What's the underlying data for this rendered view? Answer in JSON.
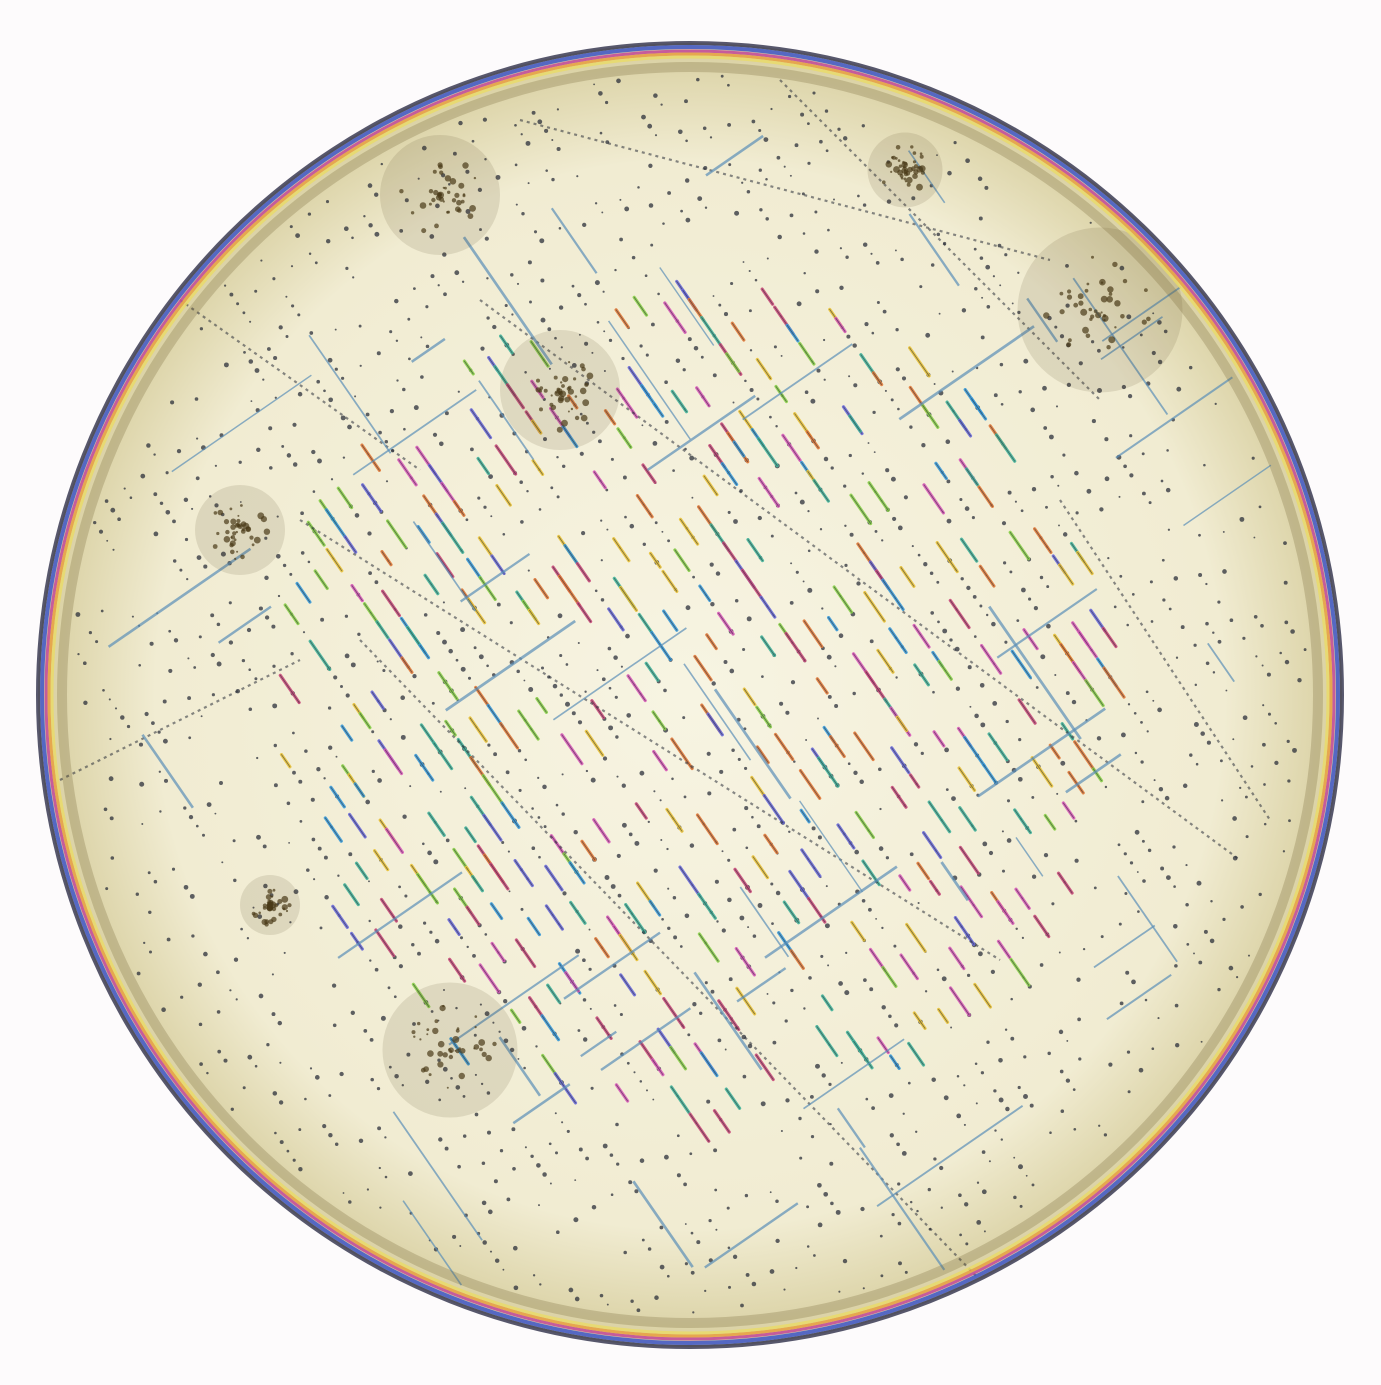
{
  "image": {
    "subject": "micrograph-droplet",
    "colors": {
      "background": "#fdfbfc",
      "interior": "#f1ecd2",
      "interior_center": "#f7f4e2",
      "rim_dark": "#3a3a52",
      "rim_blue": "#3d56c9",
      "rim_magenta": "#c2489a",
      "rim_orange": "#e8a040",
      "rim_yellow": "#e9da6a",
      "rim_shadow": "#6b5a2c",
      "dot": "#2b2f3a",
      "needle": "#5b8fb8",
      "cluster": "#4a3a18"
    },
    "bar_palette": [
      "#d85ab8",
      "#e8c23a",
      "#43b39a",
      "#6a6ad8",
      "#e07a3a",
      "#3a9ad8",
      "#8ad04a",
      "#c84a7a"
    ]
  }
}
